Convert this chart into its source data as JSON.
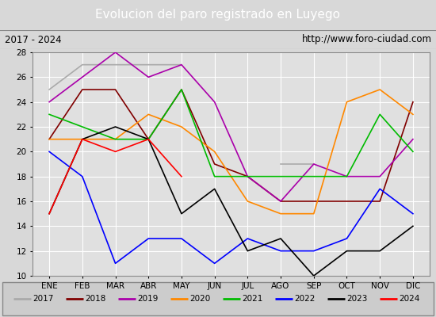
{
  "title": "Evolucion del paro registrado en Luyego",
  "subtitle_left": "2017 - 2024",
  "subtitle_right": "http://www.foro-ciudad.com",
  "months": [
    "ENE",
    "FEB",
    "MAR",
    "ABR",
    "MAY",
    "JUN",
    "JUL",
    "AGO",
    "SEP",
    "OCT",
    "NOV",
    "DIC"
  ],
  "ylim": [
    10,
    28
  ],
  "yticks": [
    10,
    12,
    14,
    16,
    18,
    20,
    22,
    24,
    26,
    28
  ],
  "series": {
    "2017": {
      "color": "#aaaaaa",
      "values": [
        25,
        27,
        27,
        27,
        27,
        null,
        null,
        19,
        19,
        null,
        null,
        null
      ]
    },
    "2018": {
      "color": "#800000",
      "values": [
        21,
        25,
        25,
        21,
        25,
        19,
        18,
        16,
        16,
        16,
        16,
        24
      ]
    },
    "2019": {
      "color": "#aa00aa",
      "values": [
        24,
        26,
        28,
        26,
        27,
        24,
        18,
        16,
        19,
        18,
        18,
        21
      ]
    },
    "2020": {
      "color": "#ff8800",
      "values": [
        21,
        21,
        21,
        23,
        22,
        20,
        16,
        15,
        15,
        24,
        25,
        23
      ]
    },
    "2021": {
      "color": "#00bb00",
      "values": [
        23,
        22,
        21,
        21,
        25,
        18,
        18,
        18,
        18,
        18,
        23,
        20
      ]
    },
    "2022": {
      "color": "#0000ff",
      "values": [
        20,
        18,
        11,
        13,
        13,
        11,
        13,
        12,
        12,
        13,
        17,
        15
      ]
    },
    "2023": {
      "color": "#000000",
      "values": [
        15,
        21,
        22,
        21,
        15,
        17,
        12,
        13,
        10,
        12,
        12,
        14
      ]
    },
    "2024": {
      "color": "#ff0000",
      "values": [
        15,
        21,
        20,
        21,
        18,
        null,
        null,
        null,
        null,
        null,
        null,
        null
      ]
    }
  },
  "background_color": "#d8d8d8",
  "plot_bg_color": "#e0e0e0",
  "title_bg_color": "#5588cc",
  "title_text_color": "#ffffff",
  "subtitle_bg_color": "#cccccc",
  "legend_bg_color": "#cccccc",
  "grid_color": "#ffffff"
}
